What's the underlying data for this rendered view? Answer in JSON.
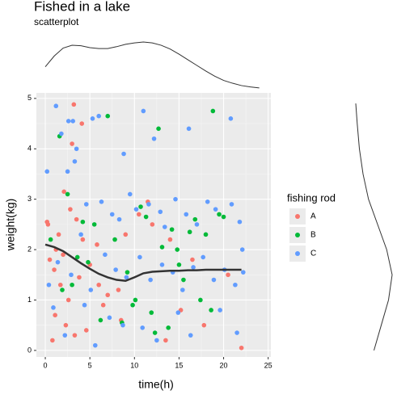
{
  "chart_data": {
    "type": "scatter",
    "title": "Fished in a lake",
    "subtitle": "scatterplot",
    "x_label": "time(h)",
    "y_label": "weight(kg)",
    "legend_title": "fishing rod",
    "xlim": [
      -1,
      25.3
    ],
    "ylim": [
      -0.13,
      5.11
    ],
    "xticks": [
      0,
      5,
      10,
      15,
      20,
      25
    ],
    "yticks": [
      0,
      1,
      2,
      3,
      4,
      5
    ],
    "grid": true,
    "legend": "right",
    "series": [
      {
        "name": "A",
        "color": "#F8766D",
        "x": [
          3.2,
          4.1,
          3.0,
          2.1,
          1.5,
          1.2,
          0.3,
          0.5,
          1.0,
          2.0,
          2.8,
          3.5,
          4.2,
          5.0,
          6.0,
          7.0,
          8.2,
          9.0,
          11.5,
          12.0,
          10.5,
          1.1,
          2.3,
          3.3,
          0.8,
          1.7,
          2.6,
          4.6,
          6.5,
          8.5,
          13.5,
          15.2,
          17.8,
          20.5,
          22.0,
          14.0,
          16.5,
          0.2,
          3.8,
          5.8
        ],
        "values": [
          4.88,
          4.5,
          4.1,
          3.15,
          2.3,
          2.0,
          2.5,
          1.8,
          1.6,
          1.9,
          2.8,
          2.6,
          2.2,
          1.7,
          1.3,
          1.1,
          1.2,
          2.3,
          2.95,
          2.5,
          2.7,
          0.7,
          0.5,
          0.3,
          0.2,
          1.3,
          1.0,
          0.4,
          0.9,
          0.6,
          0.2,
          0.8,
          0.5,
          1.5,
          0.05,
          2.2,
          1.8,
          2.55,
          1.45,
          2.1
        ]
      },
      {
        "name": "B",
        "color": "#00BA38",
        "x": [
          7.0,
          12.7,
          18.8,
          1.6,
          2.5,
          4.2,
          5.5,
          7.8,
          9.2,
          10.7,
          11.3,
          13.1,
          14.2,
          15.5,
          16.8,
          18.0,
          19.5,
          20.0,
          0.6,
          1.9,
          3.0,
          4.8,
          6.2,
          8.6,
          10.1,
          11.9,
          13.8,
          15.0,
          16.2,
          17.4,
          18.6,
          3.6,
          9.8,
          12.3,
          14.8
        ],
        "values": [
          4.65,
          4.4,
          4.75,
          4.25,
          3.1,
          2.55,
          2.5,
          2.2,
          1.55,
          2.85,
          2.65,
          2.05,
          2.4,
          1.4,
          2.6,
          2.3,
          2.7,
          2.65,
          2.2,
          1.2,
          1.3,
          1.75,
          0.6,
          0.55,
          1.0,
          0.75,
          0.45,
          1.7,
          2.35,
          1.0,
          0.8,
          1.85,
          0.9,
          0.35,
          2.0
        ]
      },
      {
        "name": "C",
        "color": "#619CFF",
        "x": [
          1.2,
          1.8,
          3.1,
          3.3,
          2.5,
          5.3,
          6.0,
          8.8,
          11.0,
          12.2,
          16.1,
          20.8,
          0.2,
          2.6,
          3.5,
          4.6,
          6.3,
          7.5,
          8.3,
          9.5,
          10.2,
          11.6,
          12.9,
          13.4,
          14.6,
          15.8,
          17.0,
          18.2,
          19.1,
          20.9,
          21.8,
          22.1,
          0.4,
          1.4,
          2.9,
          4.0,
          5.1,
          6.7,
          7.9,
          9.1,
          10.6,
          11.8,
          13.1,
          14.3,
          15.4,
          16.6,
          17.7,
          18.9,
          20.1,
          21.3,
          22.2,
          0.9,
          2.2,
          4.4,
          5.6,
          7.2,
          8.7,
          10.9,
          12.5,
          14.9,
          16.3,
          19.6,
          21.5
        ],
        "values": [
          4.85,
          4.3,
          4.55,
          3.75,
          3.55,
          4.6,
          4.65,
          3.9,
          4.75,
          4.2,
          4.4,
          4.6,
          3.55,
          4.55,
          4.0,
          2.9,
          2.95,
          2.7,
          2.6,
          3.1,
          2.8,
          2.9,
          2.75,
          2.45,
          3.0,
          2.7,
          2.5,
          2.95,
          2.8,
          2.9,
          2.55,
          2.0,
          1.3,
          1.75,
          1.5,
          2.3,
          1.2,
          1.9,
          1.6,
          1.45,
          1.85,
          1.4,
          1.7,
          1.55,
          1.2,
          1.65,
          1.85,
          1.4,
          1.6,
          1.3,
          1.55,
          0.85,
          0.3,
          0.9,
          0.1,
          0.65,
          0.5,
          0.45,
          0.2,
          0.75,
          0.3,
          0.8,
          0.35
        ]
      }
    ],
    "smooth": {
      "color": "#333333",
      "x": [
        0,
        1,
        2,
        3,
        4,
        5,
        6,
        7,
        8,
        9,
        10,
        11,
        12,
        13,
        14,
        15,
        16,
        17,
        18,
        19,
        20,
        21,
        22
      ],
      "values": [
        2.1,
        2.05,
        1.97,
        1.85,
        1.73,
        1.62,
        1.52,
        1.45,
        1.4,
        1.38,
        1.45,
        1.53,
        1.56,
        1.57,
        1.58,
        1.58,
        1.59,
        1.59,
        1.6,
        1.6,
        1.6,
        1.6,
        1.6
      ]
    },
    "top_density": {
      "x": [
        0,
        1,
        2,
        3,
        4,
        5,
        6,
        7,
        8,
        9,
        10,
        11,
        12,
        13,
        14,
        15,
        16,
        17,
        18,
        19,
        20,
        21,
        22,
        23,
        24
      ],
      "values": [
        0.47,
        0.7,
        0.87,
        0.93,
        0.92,
        0.88,
        0.86,
        0.86,
        0.9,
        0.95,
        0.98,
        1.0,
        0.98,
        0.93,
        0.85,
        0.74,
        0.62,
        0.5,
        0.38,
        0.27,
        0.18,
        0.12,
        0.07,
        0.04,
        0.02
      ]
    },
    "right_density": {
      "y": [
        0,
        0.5,
        1,
        1.5,
        2,
        2.5,
        3,
        3.5,
        4,
        4.5,
        4.9
      ],
      "values": [
        0.5,
        0.7,
        0.9,
        1.0,
        0.85,
        0.6,
        0.35,
        0.2,
        0.1,
        0.04,
        0
      ]
    }
  }
}
